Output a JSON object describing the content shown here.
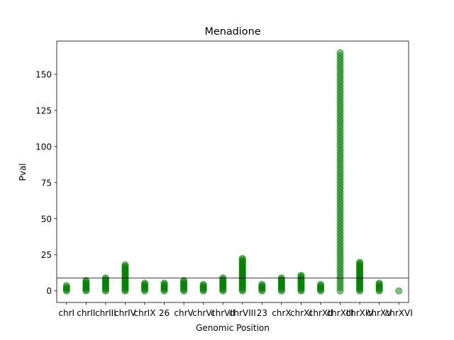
{
  "chart_data": {
    "type": "scatter",
    "title": "Menadione",
    "xlabel": "Genomic Position",
    "ylabel": "Pval",
    "categories": [
      "chrI",
      "chrII",
      "chrIII",
      "chrIV",
      "chrIX",
      "26",
      "chrV",
      "chrVI",
      "chrVII",
      "chrVIII",
      "23",
      "chrX",
      "chrXI",
      "chrXII",
      "chrXIII",
      "chrXIV",
      "chrXV",
      "chrXVI"
    ],
    "category_max": [
      4,
      8,
      9,
      18,
      6,
      6,
      8,
      5,
      9,
      23,
      5,
      9,
      11,
      5,
      165,
      20,
      6,
      0
    ],
    "xlim": [
      -0.5,
      17.5
    ],
    "ylim": [
      -8,
      173
    ],
    "yticks": [
      0,
      25,
      50,
      75,
      100,
      125,
      150
    ],
    "threshold": 9,
    "marker_color": "#008000",
    "grid": false,
    "legend": "none"
  }
}
